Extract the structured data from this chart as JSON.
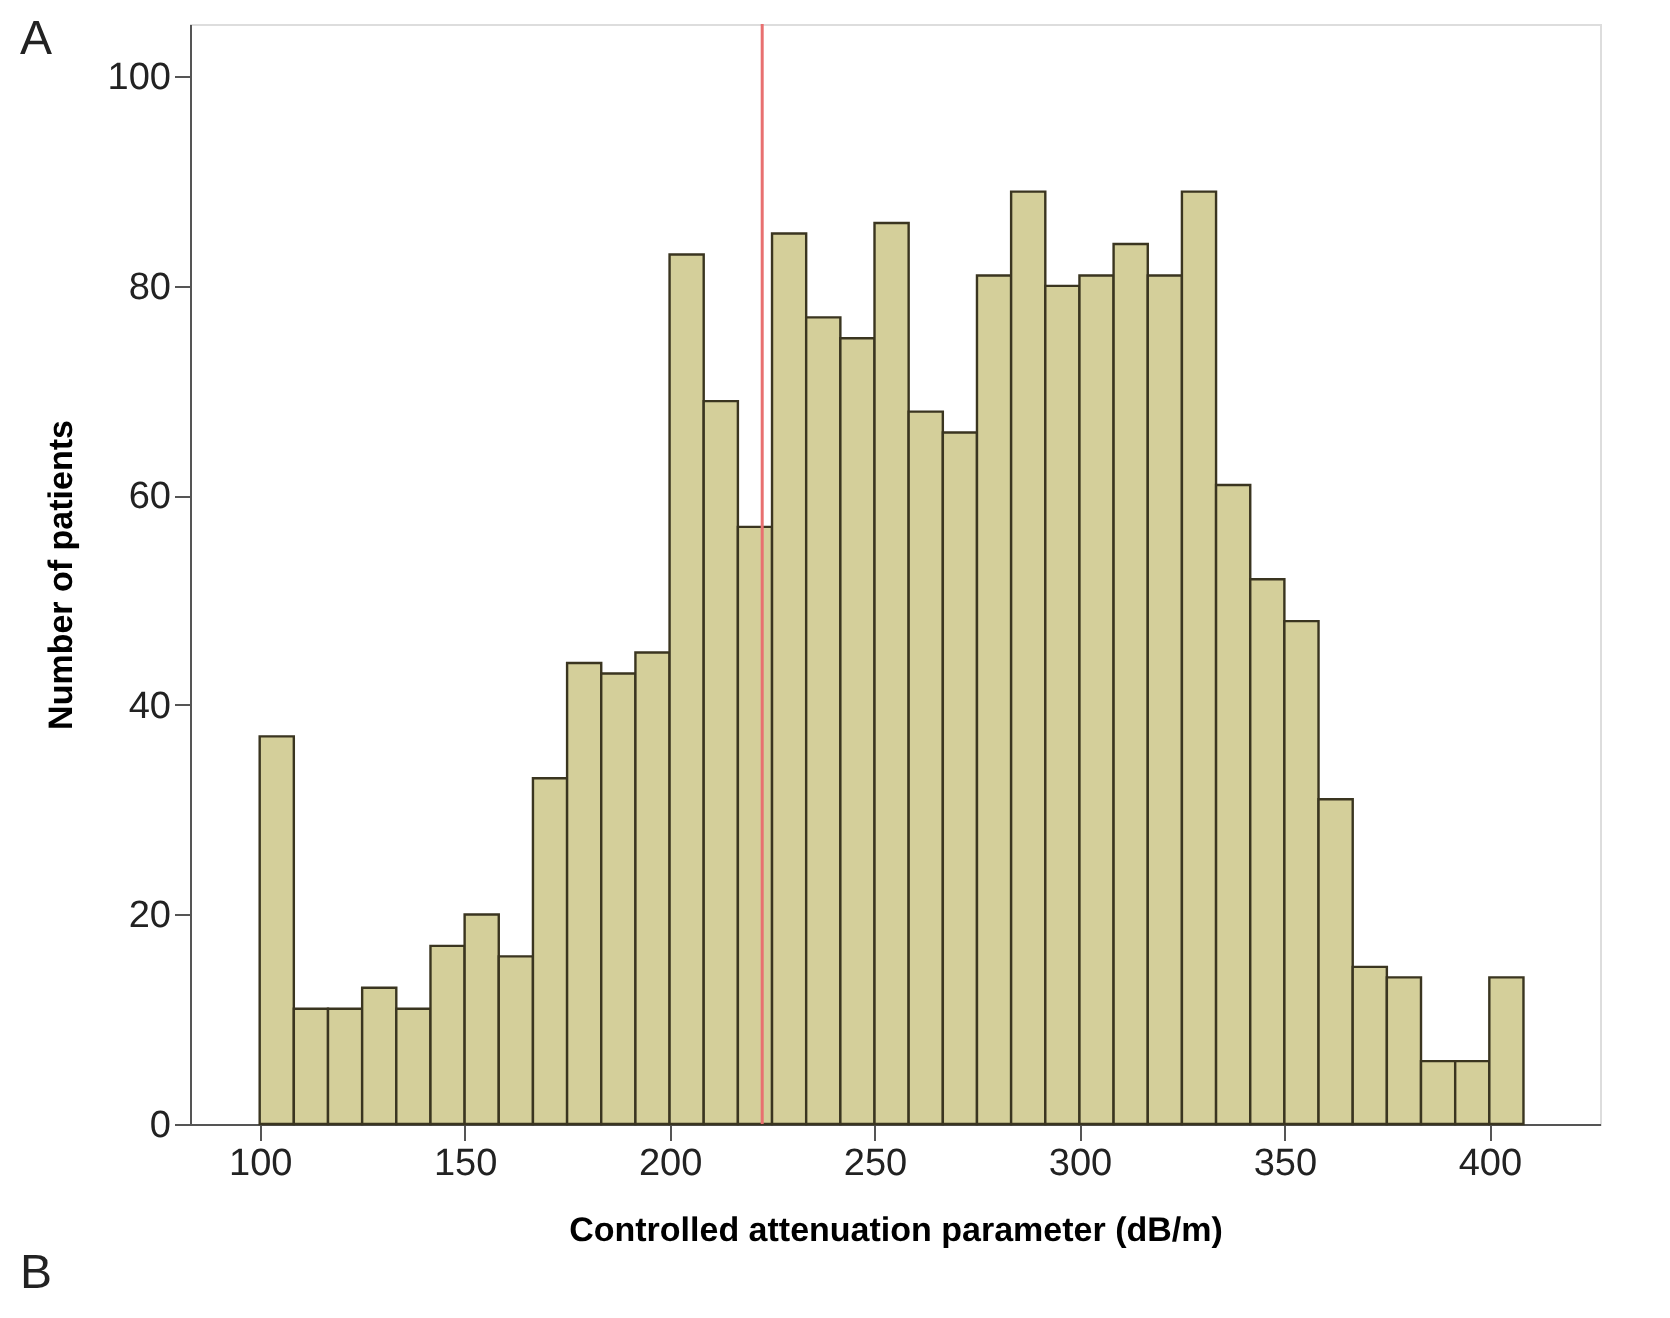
{
  "chart_data": {
    "type": "histogram",
    "xlabel": "Controlled attenuation parameter (dB/m)",
    "ylabel": "Number of patients",
    "bins": [
      100,
      108.33,
      116.67,
      125,
      133.33,
      141.67,
      150,
      158.33,
      166.67,
      175,
      183.33,
      191.67,
      200,
      208.33,
      216.67,
      225,
      233.33,
      241.67,
      250,
      258.33,
      266.67,
      275,
      283.33,
      291.67,
      300,
      308.33,
      316.67,
      325,
      333.33,
      341.67,
      350,
      358.33,
      366.67,
      375,
      383.33,
      391.67,
      400,
      408.33
    ],
    "values": [
      37,
      11,
      11,
      13,
      11,
      17,
      20,
      16,
      33,
      44,
      43,
      45,
      83,
      69,
      57,
      85,
      77,
      75,
      86,
      68,
      66,
      81,
      89,
      80,
      81,
      84,
      81,
      89,
      61,
      52,
      48,
      31,
      15,
      14,
      6,
      6,
      14
    ],
    "color": "#d4cf9a",
    "xlim": [
      83,
      427
    ],
    "xticks": [
      100,
      150,
      200,
      250,
      300,
      350,
      400
    ],
    "ylim": [
      0,
      105
    ],
    "yticks": [
      0,
      20,
      40,
      60,
      80,
      100
    ],
    "grid": false,
    "ref_lines": [
      {
        "axis": "x",
        "value": 222.6,
        "color": "#e87070"
      }
    ],
    "annotations": [
      "A",
      "B"
    ]
  }
}
